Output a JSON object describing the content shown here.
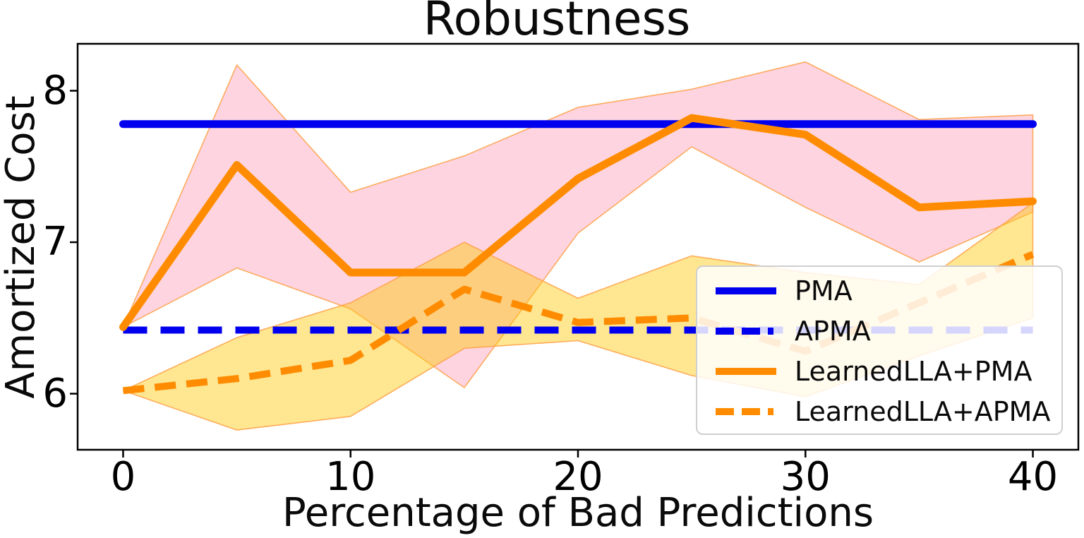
{
  "chart": {
    "title": "Robustness",
    "xlabel": "Percentage of Bad Predictions",
    "ylabel": "Amortized Cost"
  },
  "chart_data": {
    "type": "line",
    "title": "Robustness",
    "xlabel": "Percentage of Bad Predictions",
    "ylabel": "Amortized Cost",
    "x": [
      0,
      5,
      10,
      15,
      20,
      25,
      30,
      35,
      40
    ],
    "x_ticks": [
      "0",
      "10",
      "20",
      "30",
      "40"
    ],
    "x_tick_values": [
      0,
      10,
      20,
      30,
      40
    ],
    "y_ticks": [
      "6",
      "7",
      "8"
    ],
    "y_tick_values": [
      6,
      7,
      8
    ],
    "xlim": [
      -2,
      42
    ],
    "ylim": [
      5.63,
      8.31
    ],
    "grid": false,
    "legend_position": "lower right",
    "series": [
      {
        "name": "PMA",
        "color": "#0000ee",
        "style": "solid",
        "values": [
          7.78,
          7.78,
          7.78,
          7.78,
          7.78,
          7.78,
          7.78,
          7.78,
          7.78
        ]
      },
      {
        "name": "APMA",
        "color": "#0000ee",
        "style": "dashed",
        "values": [
          6.42,
          6.42,
          6.42,
          6.42,
          6.42,
          6.42,
          6.42,
          6.42,
          6.42
        ]
      },
      {
        "name": "LearnedLLA+PMA",
        "color": "#ff8c00",
        "style": "solid",
        "values": [
          6.44,
          7.51,
          6.8,
          6.8,
          7.42,
          7.82,
          7.71,
          7.23,
          7.27
        ]
      },
      {
        "name": "LearnedLLA+APMA",
        "color": "#ff8c00",
        "style": "dashed",
        "values": [
          6.02,
          6.1,
          6.22,
          6.69,
          6.47,
          6.5,
          6.28,
          6.6,
          6.92
        ]
      }
    ],
    "bands": [
      {
        "series": "LearnedLLA+PMA",
        "fill": "rgba(244,60,110,0.22)",
        "edge": "rgba(255,160,70,0.85)",
        "upper": [
          6.44,
          8.17,
          7.33,
          7.57,
          7.89,
          8.01,
          8.19,
          7.81,
          7.84
        ],
        "lower": [
          6.44,
          6.83,
          6.56,
          6.04,
          7.06,
          7.63,
          7.23,
          6.87,
          7.2
        ]
      },
      {
        "series": "LearnedLLA+APMA",
        "fill": "rgba(255,200,10,0.45)",
        "edge": "rgba(255,160,70,0.85)",
        "upper": [
          6.02,
          6.37,
          6.6,
          7.0,
          6.63,
          6.91,
          6.8,
          6.72,
          7.26
        ],
        "lower": [
          6.02,
          5.76,
          5.85,
          6.3,
          6.35,
          6.12,
          5.98,
          6.25,
          6.5
        ]
      }
    ]
  },
  "legend": {
    "items": [
      {
        "label": "PMA",
        "color": "#0000ee",
        "dash": false
      },
      {
        "label": "APMA",
        "color": "#0000ee",
        "dash": true
      },
      {
        "label": "LearnedLLA+PMA",
        "color": "#ff8c00",
        "dash": false
      },
      {
        "label": "LearnedLLA+APMA",
        "color": "#ff8c00",
        "dash": true
      }
    ]
  }
}
